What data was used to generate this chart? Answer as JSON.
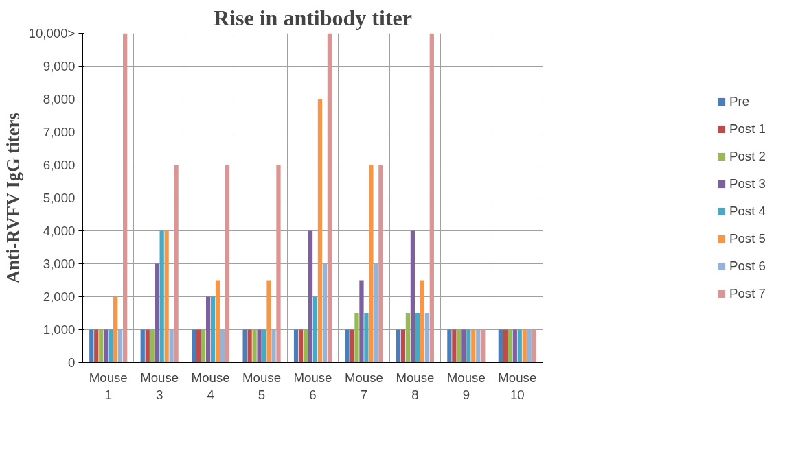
{
  "chart_data": {
    "type": "bar",
    "title": "Rise in antibody titer",
    "ylabel": "Anti-RVFV IgG titers",
    "categories": [
      "Mouse 1",
      "Mouse 3",
      "Mouse 4",
      "Mouse 5",
      "Mouse 6",
      "Mouse 7",
      "Mouse 8",
      "Mouse 9",
      "Mouse 10"
    ],
    "series": [
      {
        "name": "Pre",
        "color": "#4a7ebb",
        "values": [
          1000,
          1000,
          1000,
          1000,
          1000,
          1000,
          1000,
          1000,
          1000
        ]
      },
      {
        "name": "Post 1",
        "color": "#be4b48",
        "values": [
          1000,
          1000,
          1000,
          1000,
          1000,
          1000,
          1000,
          1000,
          1000
        ]
      },
      {
        "name": "Post 2",
        "color": "#98b954",
        "values": [
          1000,
          1000,
          1000,
          1000,
          1000,
          1500,
          1500,
          1000,
          1000
        ]
      },
      {
        "name": "Post 3",
        "color": "#7d60a0",
        "values": [
          1000,
          3000,
          2000,
          1000,
          4000,
          2500,
          4000,
          1000,
          1000
        ]
      },
      {
        "name": "Post 4",
        "color": "#46aac5",
        "values": [
          1000,
          4000,
          2000,
          1000,
          2000,
          1500,
          1500,
          1000,
          1000
        ]
      },
      {
        "name": "Post 5",
        "color": "#f79646",
        "values": [
          2000,
          4000,
          2500,
          2500,
          8000,
          6000,
          2500,
          1000,
          1000
        ]
      },
      {
        "name": "Post 6",
        "color": "#95b3d7",
        "values": [
          1000,
          1000,
          1000,
          1000,
          3000,
          3000,
          1500,
          1000,
          1000
        ]
      },
      {
        "name": "Post 7",
        "color": "#d99694",
        "values": [
          10000,
          6000,
          6000,
          6000,
          10000,
          6000,
          10000,
          1000,
          1000
        ]
      }
    ],
    "ylim": [
      0,
      10000
    ],
    "yticks": [
      0,
      {
        "value": 1000,
        "label": "1,000"
      },
      {
        "value": 2000,
        "label": "2,000"
      },
      {
        "value": 3000,
        "label": "3,000"
      },
      {
        "value": 4000,
        "label": "4,000"
      },
      {
        "value": 5000,
        "label": "5,000"
      },
      {
        "value": 6000,
        "label": "6,000"
      },
      {
        "value": 7000,
        "label": "7,000"
      },
      {
        "value": 8000,
        "label": "8,000"
      },
      {
        "value": 9000,
        "label": "9,000"
      },
      {
        "value": 10000,
        "label": "10,000>"
      }
    ],
    "grid": true,
    "legend": "right"
  }
}
